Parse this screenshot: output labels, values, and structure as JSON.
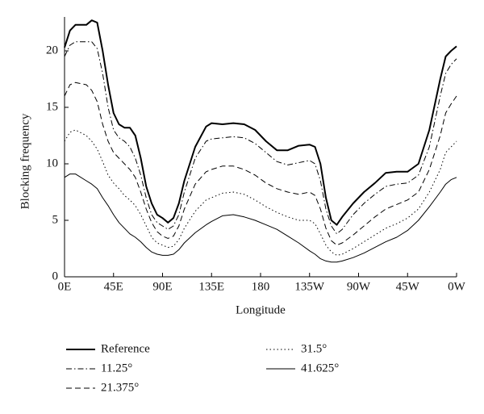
{
  "chart_data": {
    "type": "line",
    "xlabel": "Longitude",
    "ylabel": "Blocking frequency",
    "x": [
      0,
      5,
      10,
      20,
      25,
      30,
      35,
      40,
      45,
      50,
      55,
      60,
      65,
      70,
      75,
      80,
      85,
      90,
      95,
      100,
      105,
      110,
      120,
      130,
      135,
      145,
      155,
      165,
      175,
      185,
      195,
      205,
      215,
      225,
      230,
      235,
      240,
      245,
      250,
      255,
      265,
      275,
      285,
      295,
      305,
      315,
      325,
      335,
      345,
      350,
      355,
      360
    ],
    "series": [
      {
        "name": "Reference",
        "color": "#000000",
        "dash": "solid",
        "linewidth": 2,
        "values": [
          20.3,
          21.8,
          22.3,
          22.3,
          22.7,
          22.5,
          20,
          17,
          14.5,
          13.5,
          13.2,
          13.2,
          12.5,
          10.5,
          8,
          6.5,
          5.5,
          5.2,
          4.8,
          5.2,
          6.5,
          8.5,
          11.5,
          13.3,
          13.6,
          13.5,
          13.6,
          13.5,
          13,
          12,
          11.2,
          11.2,
          11.6,
          11.7,
          11.5,
          10,
          7,
          5,
          4.6,
          5.3,
          6.5,
          7.5,
          8.3,
          9.2,
          9.3,
          9.3,
          10,
          13,
          17.5,
          19.5,
          20,
          20.4
        ]
      },
      {
        "name": "11.25°",
        "color": "#000000",
        "dash": "dashdot",
        "linewidth": 1,
        "values": [
          19.5,
          20.5,
          20.8,
          20.8,
          20.8,
          20.2,
          18,
          15,
          13,
          12.3,
          12,
          11.5,
          10.5,
          9,
          7,
          5.5,
          4.8,
          4.5,
          4.2,
          4.5,
          5.5,
          7.5,
          10.5,
          12,
          12.2,
          12.3,
          12.4,
          12.3,
          11.8,
          11,
          10.2,
          9.9,
          10.1,
          10.3,
          10,
          8.5,
          6,
          4.5,
          3.8,
          4.2,
          5.5,
          6.5,
          7.3,
          8,
          8.2,
          8.3,
          9,
          11.5,
          16,
          18,
          18.8,
          19.3
        ]
      },
      {
        "name": "21.375°",
        "color": "#000000",
        "dash": "dashed",
        "linewidth": 1,
        "values": [
          16,
          17,
          17.2,
          17,
          16.5,
          15.5,
          13.5,
          12,
          11,
          10.5,
          10,
          9.5,
          8.8,
          7.5,
          6,
          4.8,
          4,
          3.6,
          3.4,
          3.6,
          4.5,
          6,
          8.2,
          9.3,
          9.5,
          9.8,
          9.8,
          9.5,
          9,
          8.3,
          7.8,
          7.5,
          7.3,
          7.5,
          7.2,
          6,
          4.3,
          3.2,
          2.8,
          3,
          3.7,
          4.5,
          5.3,
          6,
          6.4,
          6.8,
          7.5,
          9.5,
          12.5,
          14.5,
          15.3,
          16
        ]
      },
      {
        "name": "31.5°",
        "color": "#000000",
        "dash": "dotted",
        "linewidth": 1,
        "values": [
          12,
          12.8,
          13,
          12.5,
          12,
          11.3,
          10.2,
          9,
          8.3,
          7.8,
          7.2,
          6.8,
          6.3,
          5.5,
          4.5,
          3.5,
          3,
          2.8,
          2.6,
          2.7,
          3.3,
          4.3,
          5.8,
          6.8,
          7,
          7.4,
          7.5,
          7.3,
          6.8,
          6.2,
          5.7,
          5.3,
          5,
          5,
          4.7,
          3.8,
          2.8,
          2.2,
          1.9,
          2,
          2.5,
          3.1,
          3.7,
          4.3,
          4.7,
          5.2,
          6,
          7.5,
          9.5,
          11,
          11.5,
          12
        ]
      },
      {
        "name": "41.625°",
        "color": "#000000",
        "dash": "solid",
        "linewidth": 1,
        "values": [
          8.8,
          9.1,
          9.1,
          8.5,
          8.2,
          7.8,
          7,
          6.3,
          5.5,
          4.8,
          4.3,
          3.8,
          3.5,
          3.1,
          2.6,
          2.2,
          2,
          1.9,
          1.9,
          2,
          2.4,
          3,
          3.9,
          4.6,
          4.9,
          5.4,
          5.5,
          5.3,
          5,
          4.6,
          4.2,
          3.6,
          3,
          2.3,
          2,
          1.6,
          1.4,
          1.3,
          1.3,
          1.4,
          1.7,
          2.1,
          2.6,
          3.1,
          3.5,
          4.1,
          5,
          6.2,
          7.5,
          8.2,
          8.6,
          8.8
        ]
      }
    ],
    "xlim": [
      0,
      360
    ],
    "xticks": [
      {
        "value": 0,
        "label": "0E"
      },
      {
        "value": 45,
        "label": "45E"
      },
      {
        "value": 90,
        "label": "90E"
      },
      {
        "value": 135,
        "label": "135E"
      },
      180,
      {
        "value": 225,
        "label": "135W"
      },
      {
        "value": 270,
        "label": "90W"
      },
      {
        "value": 315,
        "label": "45W"
      },
      {
        "value": 360,
        "label": "0W"
      }
    ],
    "ylim": [
      0,
      23
    ],
    "yticks": [
      0,
      5,
      10,
      15,
      20
    ],
    "grid": false,
    "legend": "bottom"
  }
}
